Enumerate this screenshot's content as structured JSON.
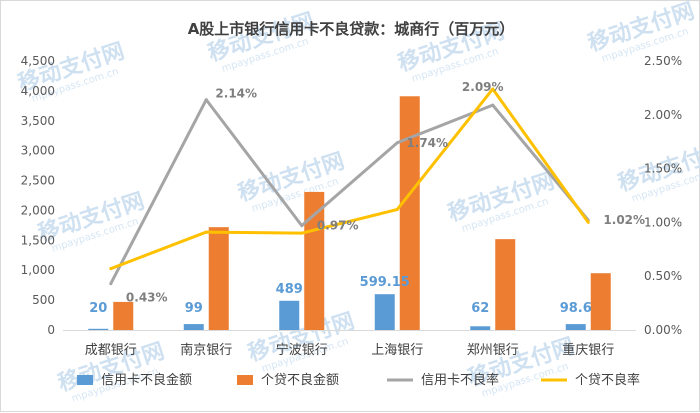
{
  "chart_data": {
    "type": "bar+line",
    "title": "A股上市银行信用卡不良贷款：城商行（百万元）",
    "categories": [
      "成都银行",
      "南京银行",
      "宁波银行",
      "上海银行",
      "郑州银行",
      "重庆银行"
    ],
    "y_left": {
      "ylim": [
        0,
        4500
      ],
      "ticks": [
        "0",
        "500",
        "1,000",
        "1,500",
        "2,000",
        "2,500",
        "3,000",
        "3,500",
        "4,000",
        "4,500"
      ]
    },
    "y_right": {
      "ylim": [
        0,
        2.5
      ],
      "ticks": [
        "0.00%",
        "0.50%",
        "1.00%",
        "1.50%",
        "2.00%",
        "2.50%"
      ]
    },
    "series": [
      {
        "name": "信用卡不良金额",
        "type": "bar",
        "axis": "left",
        "color": "#5b9bd5",
        "values": [
          20,
          99,
          489,
          599.15,
          62,
          98.6
        ],
        "labels": [
          "20",
          "99",
          "489",
          "599.15",
          "62",
          "98.6"
        ]
      },
      {
        "name": "个贷不良金额",
        "type": "bar",
        "axis": "left",
        "color": "#ed7d31",
        "values": [
          470,
          1720,
          2310,
          3910,
          1520,
          950
        ]
      },
      {
        "name": "信用卡不良率",
        "type": "line",
        "axis": "right",
        "color": "#a5a5a5",
        "values": [
          0.43,
          2.14,
          0.97,
          1.74,
          2.09,
          1.02
        ],
        "labels": [
          "0.43%",
          "2.14%",
          "0.97%",
          "1.74%",
          "2.09%",
          "1.02%"
        ]
      },
      {
        "name": "个贷不良率",
        "type": "line",
        "axis": "right",
        "color": "#ffc000",
        "values": [
          0.57,
          0.91,
          0.9,
          1.12,
          2.24,
          1.0
        ]
      }
    ],
    "legend": "bottom",
    "grid": false
  },
  "watermark": {
    "text": "移动支付网",
    "sub": "mpaypass.com.cn"
  }
}
